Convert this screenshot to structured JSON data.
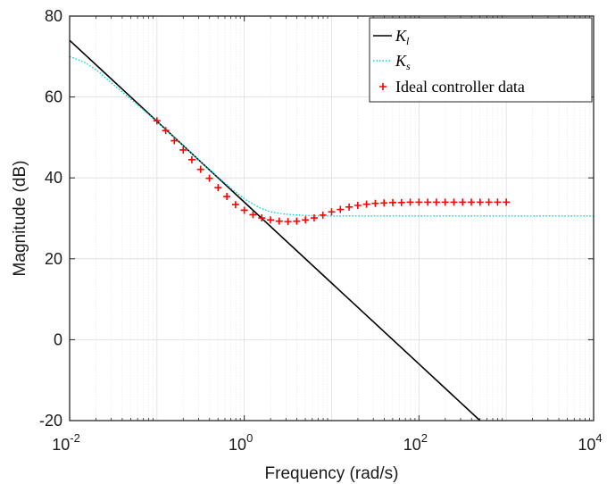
{
  "chart_data": {
    "type": "line",
    "xlabel": "Frequency (rad/s)",
    "ylabel": "Magnitude (dB)",
    "xscale": "log",
    "xlim": [
      0.01,
      10000
    ],
    "ylim": [
      -20,
      80
    ],
    "x_ticks": [
      {
        "base": "10",
        "exp": "-2",
        "value": 0.01
      },
      {
        "base": "10",
        "exp": "0",
        "value": 1
      },
      {
        "base": "10",
        "exp": "2",
        "value": 100
      },
      {
        "base": "10",
        "exp": "4",
        "value": 10000
      }
    ],
    "y_ticks": [
      "-20",
      "0",
      "20",
      "40",
      "60",
      "80"
    ],
    "y_tick_values": [
      -20,
      0,
      20,
      40,
      60,
      80
    ],
    "grid": true,
    "minor_grid": true,
    "legend_position": "top-right",
    "series": [
      {
        "name": "K",
        "name_subscript": "l",
        "style": "solid",
        "color": "#000000",
        "x": [
          0.01,
          0.1,
          1,
          10,
          100,
          500
        ],
        "y": [
          74,
          54,
          34,
          14,
          -6,
          -20
        ]
      },
      {
        "name": "K",
        "name_subscript": "s",
        "style": "dotted",
        "color": "#00d8d8",
        "x": [
          0.01,
          0.015,
          0.02,
          0.03,
          0.05,
          0.07,
          0.1,
          0.15,
          0.2,
          0.3,
          0.5,
          0.7,
          1,
          1.5,
          2,
          3,
          5,
          7,
          10,
          15,
          20,
          30,
          50,
          100,
          300,
          1000,
          3000,
          10000
        ],
        "y": [
          70,
          68.5,
          66.8,
          63.5,
          59.5,
          56.8,
          53.9,
          50.4,
          48,
          44.5,
          40.2,
          37.5,
          34.8,
          32.6,
          31.6,
          31,
          30.7,
          30.6,
          30.6,
          30.6,
          30.6,
          30.6,
          30.6,
          30.6,
          30.6,
          30.6,
          30.6,
          30.6
        ]
      },
      {
        "name": "Ideal controller data",
        "style": "marker",
        "marker": "+",
        "color": "#ff0000",
        "x": [
          0.1,
          0.126,
          0.158,
          0.2,
          0.251,
          0.316,
          0.398,
          0.501,
          0.631,
          0.794,
          1,
          1.259,
          1.585,
          1.995,
          2.512,
          3.162,
          3.981,
          5.012,
          6.31,
          7.943,
          10,
          12.59,
          15.85,
          19.95,
          25.12,
          31.62,
          39.81,
          50.12,
          63.1,
          79.43,
          100,
          125.9,
          158.5,
          199.5,
          251.2,
          316.2,
          398.1,
          501.2,
          631,
          794.3,
          1000
        ],
        "y": [
          54.1,
          51.7,
          49.2,
          46.9,
          44.5,
          42.1,
          39.9,
          37.6,
          35.4,
          33.4,
          32,
          30.9,
          30.1,
          29.6,
          29.3,
          29.2,
          29.3,
          29.6,
          30.1,
          30.8,
          31.6,
          32.2,
          32.8,
          33.2,
          33.5,
          33.7,
          33.8,
          33.9,
          33.9,
          34,
          34,
          34,
          34,
          34,
          34,
          34,
          34,
          34,
          34,
          34,
          34
        ]
      }
    ]
  }
}
